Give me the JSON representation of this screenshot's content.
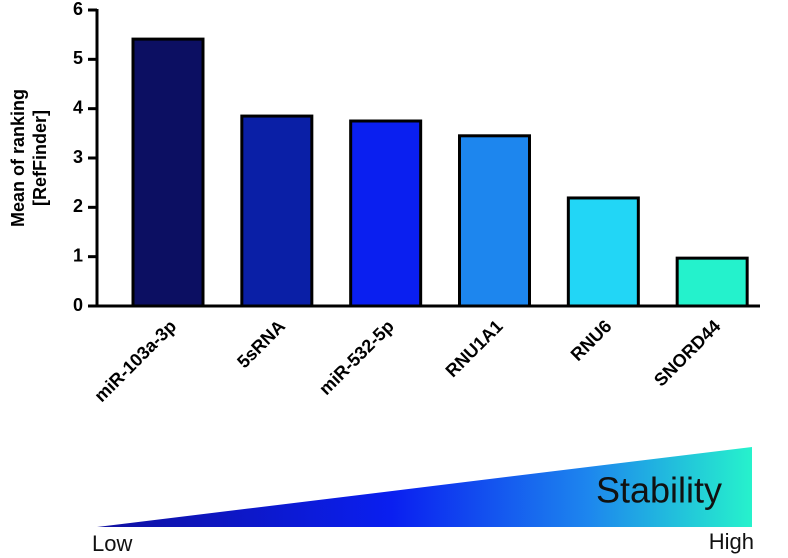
{
  "chart_data": {
    "type": "bar",
    "ylabel": [
      "Mean of ranking",
      "[RefFinder]"
    ],
    "categories": [
      "miR-103a-3p",
      "5sRNA",
      "miR-532-5p",
      "RNU1A1",
      "RNU6",
      "SNORD44"
    ],
    "values": [
      5.41,
      3.85,
      3.75,
      3.45,
      2.19,
      0.97
    ],
    "colors": [
      "#0c0f62",
      "#0a1fa6",
      "#0a1ff0",
      "#1d86ee",
      "#22d6f6",
      "#24f2cc"
    ],
    "ylim": [
      0,
      6
    ],
    "yticks": [
      0,
      1,
      2,
      3,
      4,
      5,
      6
    ],
    "grid": false,
    "annotations": {
      "scale_label": "Stability",
      "low": "Low",
      "high": "High"
    }
  }
}
